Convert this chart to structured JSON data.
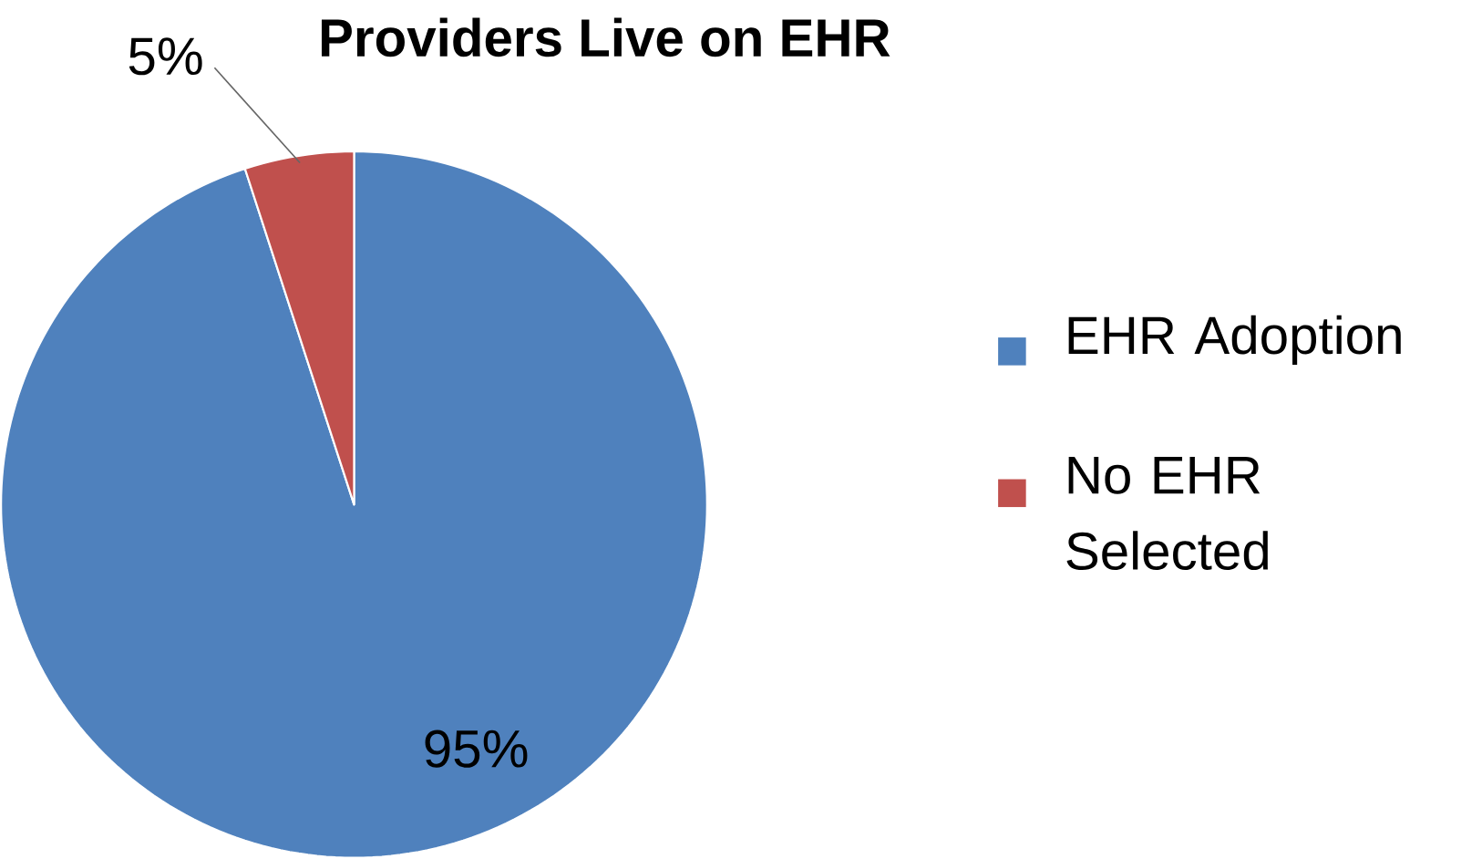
{
  "chart_data": {
    "type": "pie",
    "title": "Providers Live on EHR",
    "categories": [
      "EHR Adoption",
      "No EHR Selected"
    ],
    "values": [
      95,
      5
    ],
    "value_labels": [
      "95%",
      "5%"
    ],
    "colors": [
      "#4f81bd",
      "#c0504d"
    ],
    "legend": "right"
  }
}
